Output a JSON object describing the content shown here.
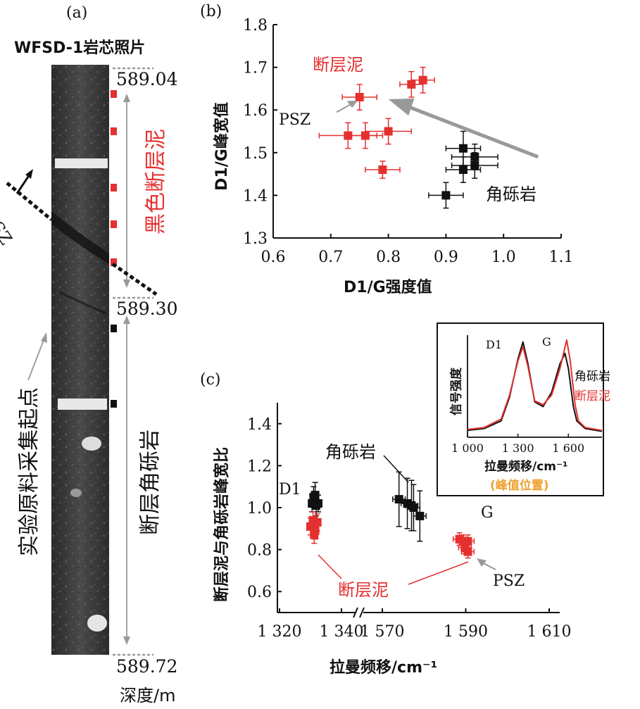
{
  "panel_a": {
    "label": "(a)",
    "title": "WFSD-1岩芯照片",
    "depth_top": "589.04",
    "depth_mid": "589.30",
    "depth_bottom": "589.72",
    "depth_unit": "深度/m",
    "psz_label": "PSZ",
    "zone_gouge": "黑色断层泥",
    "zone_breccia": "断层角砾岩",
    "start_point_label": "实验原料采集起点",
    "colors": {
      "gouge": "#e53030",
      "breccia": "#111111",
      "arrow": "#999999"
    }
  },
  "chart_data": [
    {
      "type": "scatter",
      "panel_label": "(b)",
      "title": "",
      "xlabel": "D1/G强度值",
      "ylabel": "D1/G峰宽值",
      "xlim": [
        0.6,
        1.1
      ],
      "ylim": [
        1.3,
        1.8
      ],
      "xticks": [
        "0.6",
        "0.7",
        "0.8",
        "0.9",
        "1.0",
        "1.1"
      ],
      "yticks": [
        "1.3",
        "1.4",
        "1.5",
        "1.6",
        "1.7",
        "1.8"
      ],
      "series": [
        {
          "name": "断层泥",
          "color": "#e53030",
          "points": [
            {
              "x": 0.75,
              "y": 1.63,
              "xerr": 0.03,
              "yerr": 0.03
            },
            {
              "x": 0.84,
              "y": 1.66,
              "xerr": 0.02,
              "yerr": 0.03
            },
            {
              "x": 0.86,
              "y": 1.67,
              "xerr": 0.02,
              "yerr": 0.03
            },
            {
              "x": 0.73,
              "y": 1.54,
              "xerr": 0.05,
              "yerr": 0.03
            },
            {
              "x": 0.76,
              "y": 1.54,
              "xerr": 0.03,
              "yerr": 0.03
            },
            {
              "x": 0.8,
              "y": 1.55,
              "xerr": 0.04,
              "yerr": 0.03
            },
            {
              "x": 0.79,
              "y": 1.46,
              "xerr": 0.03,
              "yerr": 0.02
            }
          ]
        },
        {
          "name": "角砾岩",
          "color": "#111111",
          "points": [
            {
              "x": 0.93,
              "y": 1.51,
              "xerr": 0.03,
              "yerr": 0.04
            },
            {
              "x": 0.95,
              "y": 1.49,
              "xerr": 0.04,
              "yerr": 0.03
            },
            {
              "x": 0.95,
              "y": 1.47,
              "xerr": 0.04,
              "yerr": 0.03
            },
            {
              "x": 0.93,
              "y": 1.46,
              "xerr": 0.03,
              "yerr": 0.03
            },
            {
              "x": 0.9,
              "y": 1.4,
              "xerr": 0.03,
              "yerr": 0.03
            }
          ]
        }
      ],
      "annotations": {
        "gouge_label": "断层泥",
        "breccia_label": "角砾岩",
        "psz_label": "PSZ"
      }
    },
    {
      "type": "scatter",
      "panel_label": "(c)",
      "title": "",
      "xlabel": "拉曼频移/cm⁻¹",
      "ylabel": "断层泥与角砾岩峰宽比",
      "xlim_segments": [
        [
          1320,
          1340
        ],
        [
          1570,
          1610
        ]
      ],
      "ylim": [
        0.5,
        1.5
      ],
      "xticks": [
        "1 320",
        "1 340",
        "1 570",
        "1 590",
        "1 610"
      ],
      "yticks": [
        "0.6",
        "0.8",
        "1.0",
        "1.2",
        "1.4"
      ],
      "series": [
        {
          "name": "角砾岩",
          "color": "#111111",
          "points": [
            {
              "x": 1330.5,
              "y": 1.02,
              "xerr": 1.0,
              "yerr": 0.04
            },
            {
              "x": 1331.0,
              "y": 1.05,
              "xerr": 1.0,
              "yerr": 0.05
            },
            {
              "x": 1331.5,
              "y": 1.06,
              "xerr": 1.0,
              "yerr": 0.06
            },
            {
              "x": 1332.5,
              "y": 1.02,
              "xerr": 1.0,
              "yerr": 0.04
            },
            {
              "x": 1331.8,
              "y": 1.01,
              "xerr": 1.0,
              "yerr": 0.05
            },
            {
              "x": 1574.0,
              "y": 1.04,
              "xerr": 1.5,
              "yerr": 0.13
            },
            {
              "x": 1576.0,
              "y": 1.02,
              "xerr": 1.5,
              "yerr": 0.12
            },
            {
              "x": 1577.0,
              "y": 1.01,
              "xerr": 1.5,
              "yerr": 0.12
            },
            {
              "x": 1577.5,
              "y": 1.0,
              "xerr": 1.5,
              "yerr": 0.11
            },
            {
              "x": 1579.0,
              "y": 0.96,
              "xerr": 1.5,
              "yerr": 0.12
            }
          ]
        },
        {
          "name": "断层泥",
          "color": "#e53030",
          "points": [
            {
              "x": 1330.0,
              "y": 0.91,
              "xerr": 1.0,
              "yerr": 0.04
            },
            {
              "x": 1330.8,
              "y": 0.94,
              "xerr": 1.0,
              "yerr": 0.04
            },
            {
              "x": 1331.5,
              "y": 0.89,
              "xerr": 1.0,
              "yerr": 0.04
            },
            {
              "x": 1331.2,
              "y": 0.87,
              "xerr": 1.0,
              "yerr": 0.04
            },
            {
              "x": 1332.2,
              "y": 0.93,
              "xerr": 1.0,
              "yerr": 0.04
            },
            {
              "x": 1588.5,
              "y": 0.85,
              "xerr": 1.5,
              "yerr": 0.03
            },
            {
              "x": 1589.5,
              "y": 0.84,
              "xerr": 1.5,
              "yerr": 0.03
            },
            {
              "x": 1590.5,
              "y": 0.84,
              "xerr": 1.5,
              "yerr": 0.03
            },
            {
              "x": 1589.8,
              "y": 0.81,
              "xerr": 1.5,
              "yerr": 0.03
            },
            {
              "x": 1590.5,
              "y": 0.79,
              "xerr": 1.5,
              "yerr": 0.03
            }
          ]
        }
      ],
      "annotations": {
        "d1_label": "D1",
        "g_label": "G",
        "breccia_label": "角砾岩",
        "gouge_label": "断层泥",
        "psz_label": "PSZ"
      }
    },
    {
      "type": "line",
      "panel_label": "",
      "title": "",
      "xlabel": "拉曼频移/cm⁻¹",
      "sublabel": "(峰值位置)",
      "ylabel": "信号强度",
      "xlim": [
        1000,
        1800
      ],
      "xticks": [
        "1 000",
        "1 300",
        "1 600"
      ],
      "peak_labels": {
        "d1": "D1",
        "g": "G"
      },
      "series": [
        {
          "name": "角砾岩",
          "color": "#111111",
          "x": [
            1000,
            1100,
            1200,
            1250,
            1300,
            1330,
            1360,
            1400,
            1450,
            1500,
            1550,
            1580,
            1600,
            1630,
            1650,
            1700,
            1800
          ],
          "y": [
            0.05,
            0.07,
            0.15,
            0.4,
            0.8,
            0.98,
            0.75,
            0.35,
            0.3,
            0.45,
            0.75,
            0.86,
            0.7,
            0.3,
            0.15,
            0.07,
            0.04
          ]
        },
        {
          "name": "断层泥",
          "color": "#e53030",
          "x": [
            1000,
            1100,
            1200,
            1250,
            1300,
            1330,
            1360,
            1400,
            1450,
            1500,
            1550,
            1590,
            1610,
            1640,
            1660,
            1700,
            1800
          ],
          "y": [
            0.06,
            0.08,
            0.17,
            0.42,
            0.78,
            0.93,
            0.72,
            0.36,
            0.32,
            0.42,
            0.7,
            1.0,
            0.8,
            0.32,
            0.15,
            0.08,
            0.05
          ]
        }
      ],
      "legend_breccia": "角砾岩",
      "legend_gouge": "断层泥",
      "colors": {
        "sublabel": "#f0a030"
      }
    }
  ]
}
